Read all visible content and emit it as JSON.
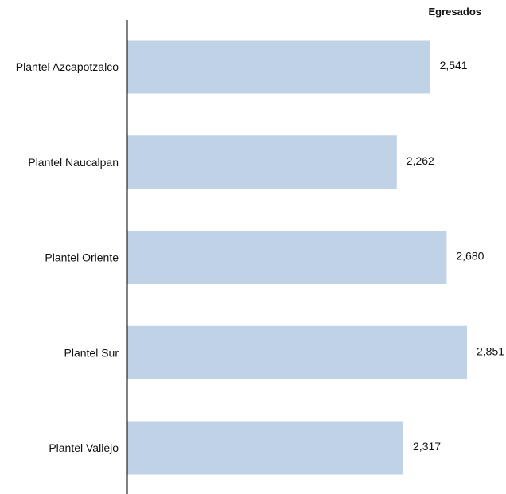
{
  "chart_data": {
    "type": "bar",
    "orientation": "horizontal",
    "series_title": "Egresados",
    "categories": [
      "Plantel Azcapotzalco",
      "Plantel Naucalpan",
      "Plantel Oriente",
      "Plantel Sur",
      "Plantel Vallejo"
    ],
    "values": [
      2541,
      2262,
      2680,
      2851,
      2317
    ],
    "value_labels": [
      "2,541",
      "2,262",
      "2,680",
      "2,851",
      "2,317"
    ],
    "xlim": [
      0,
      3000
    ],
    "grid": false,
    "legend": "none",
    "bar_color": "#c0d2e6",
    "axis_color": "#000000"
  }
}
